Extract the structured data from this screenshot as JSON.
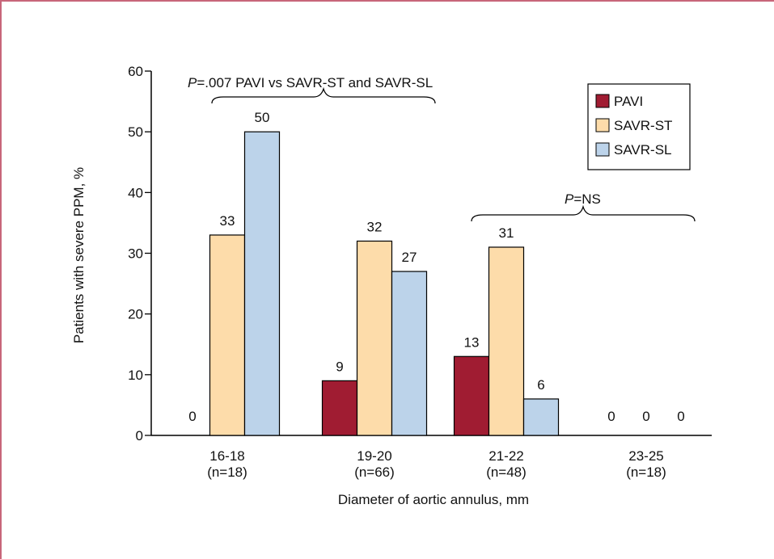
{
  "chart_data": {
    "type": "bar",
    "xlabel": "Diameter of aortic annulus, mm",
    "ylabel": "Patients with severe PPM, %",
    "ylim": [
      0,
      60
    ],
    "yticks": [
      0,
      10,
      20,
      30,
      40,
      50,
      60
    ],
    "categories": [
      {
        "label": "16-18",
        "n": "(n=18)"
      },
      {
        "label": "19-20",
        "n": "(n=66)"
      },
      {
        "label": "21-22",
        "n": "(n=48)"
      },
      {
        "label": "23-25",
        "n": "(n=18)"
      }
    ],
    "series": [
      {
        "name": "PAVI",
        "color": "#a01c32",
        "values": [
          0,
          9,
          13,
          0
        ]
      },
      {
        "name": "SAVR-ST",
        "color": "#fddcaa",
        "values": [
          33,
          32,
          31,
          0
        ]
      },
      {
        "name": "SAVR-SL",
        "color": "#bcd3ea",
        "values": [
          50,
          27,
          6,
          0
        ]
      }
    ],
    "legend_position": "top-right",
    "annotations": [
      {
        "p_prefix": "P",
        "text": "=.007 PAVI vs SAVR-ST and SAVR-SL",
        "spans_categories": [
          0,
          1
        ]
      },
      {
        "p_prefix": "P",
        "text": "=NS",
        "spans_categories": [
          2,
          3
        ]
      }
    ]
  }
}
